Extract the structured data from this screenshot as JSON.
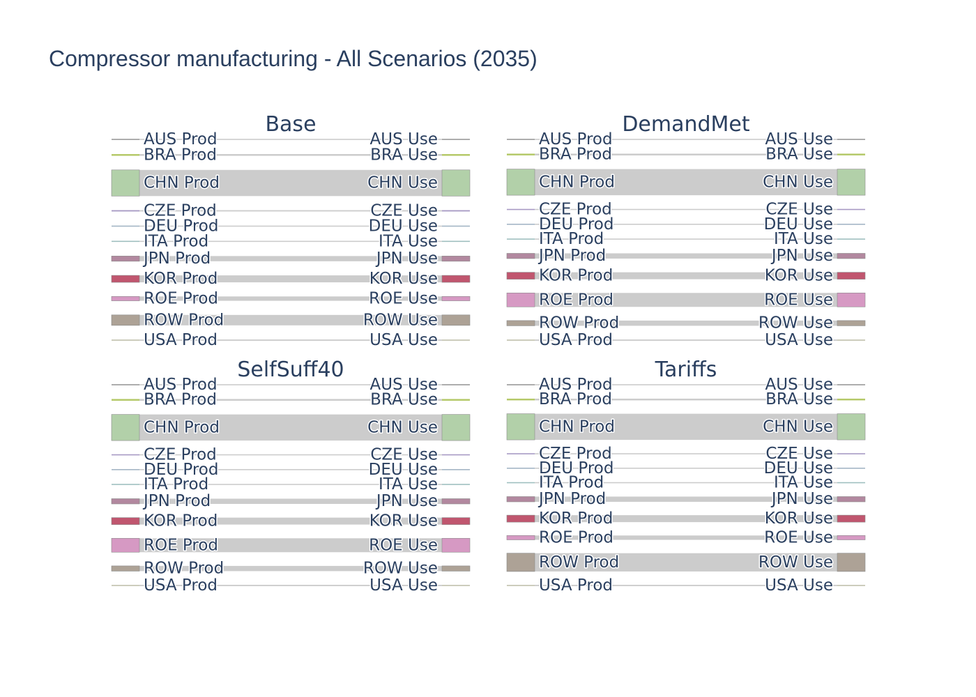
{
  "title": "Compressor manufacturing - All Scenarios (2035)",
  "chart_data": {
    "type": "sankey",
    "regions": [
      "AUS",
      "BRA",
      "CHN",
      "CZE",
      "DEU",
      "ITA",
      "JPN",
      "KOR",
      "ROE",
      "ROW",
      "USA"
    ],
    "source_suffix": "Prod",
    "target_suffix": "Use",
    "colors": {
      "AUS": "#999999",
      "BRA": "#b5c969",
      "CHN": "#b2d0a9",
      "CZE": "#a79ac4",
      "DEU": "#a3b5c5",
      "ITA": "#9fbfbf",
      "JPN": "#b2889f",
      "KOR": "#c0566f",
      "ROE": "#d699c3",
      "ROW": "#ada296",
      "USA": "#c9c9b8"
    },
    "link_color": "#cccccc",
    "panels": [
      {
        "name": "Base",
        "values": {
          "AUS": 0.5,
          "BRA": 2,
          "CHN": 30,
          "CZE": 1.5,
          "DEU": 1,
          "ITA": 1,
          "JPN": 6,
          "KOR": 8,
          "ROE": 5,
          "ROW": 12,
          "USA": 1.5
        }
      },
      {
        "name": "DemandMet",
        "values": {
          "AUS": 0.5,
          "BRA": 2,
          "CHN": 30,
          "CZE": 1,
          "DEU": 1,
          "ITA": 1,
          "JPN": 6,
          "KOR": 8,
          "ROE": 16,
          "ROW": 6,
          "USA": 1.5
        }
      },
      {
        "name": "SelfSuff40",
        "values": {
          "AUS": 0.5,
          "BRA": 2,
          "CHN": 30,
          "CZE": 1,
          "DEU": 1,
          "ITA": 1,
          "JPN": 6,
          "KOR": 8,
          "ROE": 16,
          "ROW": 6,
          "USA": 1.5
        }
      },
      {
        "name": "Tariffs",
        "values": {
          "AUS": 0.5,
          "BRA": 2,
          "CHN": 30,
          "CZE": 1,
          "DEU": 1,
          "ITA": 0.5,
          "JPN": 6,
          "KOR": 8,
          "ROE": 5,
          "ROW": 21,
          "USA": 1.5
        }
      }
    ]
  }
}
